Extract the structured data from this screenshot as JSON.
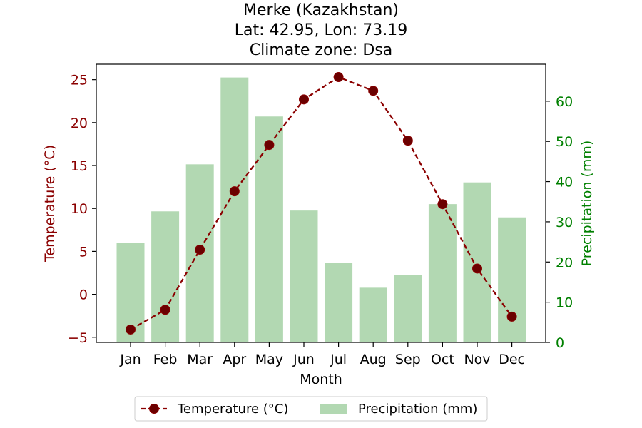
{
  "chart_data": {
    "type": "bar+line",
    "title_lines": [
      "Merke (Kazakhstan)",
      "Lat: 42.95, Lon: 73.19",
      "Climate zone: Dsa"
    ],
    "xlabel": "Month",
    "categories": [
      "Jan",
      "Feb",
      "Mar",
      "Apr",
      "May",
      "Jun",
      "Jul",
      "Aug",
      "Sep",
      "Oct",
      "Nov",
      "Dec"
    ],
    "temperature": {
      "name": "Temperature (°C)",
      "axis_label": "Temperature (°C)",
      "values": [
        -4.1,
        -1.8,
        5.2,
        12.0,
        17.4,
        22.7,
        25.3,
        23.7,
        17.9,
        10.5,
        3.0,
        -2.6
      ],
      "ylim": [
        -5.6,
        26.8
      ],
      "ticks": [
        -5,
        0,
        5,
        10,
        15,
        20,
        25
      ],
      "tick_labels": [
        "−5",
        "0",
        "5",
        "10",
        "15",
        "20",
        "25"
      ],
      "color": "#8b0000",
      "marker_color": "#6b0000"
    },
    "precipitation": {
      "name": "Precipitation (mm)",
      "axis_label": "Precipitation (mm)",
      "values": [
        24.8,
        32.6,
        44.3,
        65.9,
        56.2,
        32.8,
        19.7,
        13.6,
        16.7,
        34.4,
        39.8,
        31.1
      ],
      "ylim": [
        0,
        69.2
      ],
      "ticks": [
        0,
        10,
        20,
        30,
        40,
        50,
        60
      ],
      "tick_labels": [
        "0",
        "10",
        "20",
        "30",
        "40",
        "50",
        "60"
      ],
      "color": "#b2d8b2",
      "axis_color": "#008000"
    },
    "legend": {
      "placement": "bottom-center",
      "entries": [
        "Temperature (°C)",
        "Precipitation (mm)"
      ]
    },
    "grid": false
  }
}
